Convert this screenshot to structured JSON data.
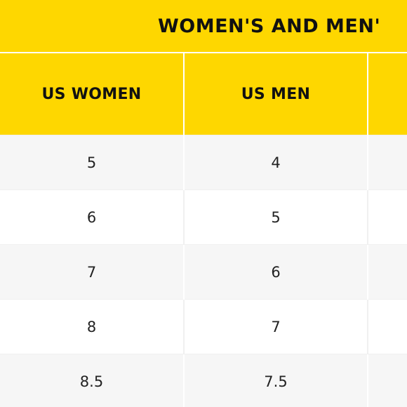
{
  "title": "WOMEN'S AND MEN'",
  "columns": [
    "US WOMEN",
    "US MEN",
    ""
  ],
  "rows": [
    [
      "5",
      "4",
      ""
    ],
    [
      "6",
      "5",
      ""
    ],
    [
      "7",
      "6",
      ""
    ],
    [
      "8",
      "7",
      ""
    ],
    [
      "8.5",
      "7.5",
      ""
    ]
  ],
  "colors": {
    "header_yellow": "#fed700",
    "header_text": "#111111",
    "row_shade": "#f6f6f6",
    "row_plain": "#ffffff"
  }
}
